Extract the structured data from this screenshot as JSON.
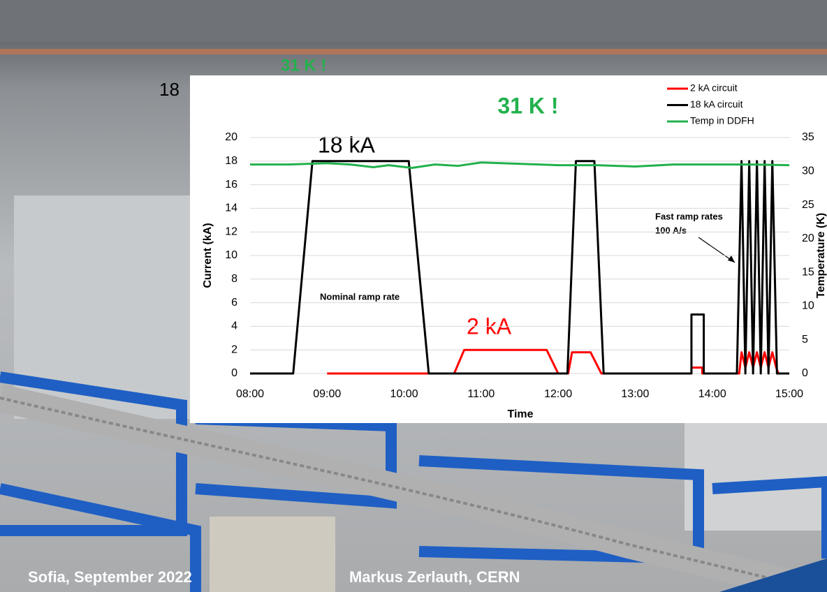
{
  "slide": {
    "footer_left": "Sofia, September 2022",
    "footer_right": "Markus Zerlauth, CERN",
    "background_label": "31 K !",
    "background_fragment": "18"
  },
  "chart_data": {
    "type": "line",
    "title": "31 K !",
    "x_label": "Time",
    "y_label": "Current (kA)",
    "y2_label": "Temperature (K)",
    "annotations": [
      "18 kA",
      "2 kA",
      "Nominal ramp rate",
      "Fast ramp rates",
      "100 A/s"
    ],
    "xlim": [
      8,
      15
    ],
    "xticks": [
      {
        "value": 8,
        "label": "08:00"
      },
      {
        "value": 9,
        "label": "09:00"
      },
      {
        "value": 10,
        "label": "10:00"
      },
      {
        "value": 11,
        "label": "11:00"
      },
      {
        "value": 12,
        "label": "12:00"
      },
      {
        "value": 13,
        "label": "13:00"
      },
      {
        "value": 14,
        "label": "14:00"
      },
      {
        "value": 15,
        "label": "15:00"
      }
    ],
    "ylim": [
      0,
      20
    ],
    "yticks": [
      0,
      2,
      4,
      6,
      8,
      10,
      12,
      14,
      16,
      18,
      20
    ],
    "y2lim": [
      0,
      35
    ],
    "y2ticks": [
      0,
      5,
      10,
      15,
      20,
      25,
      30,
      35
    ],
    "grid": true,
    "legend": "top-right",
    "series": [
      {
        "name": "2 kA circuit",
        "color": "#ff0000",
        "x": [
          9.0,
          10.65,
          10.78,
          11.85,
          12.0,
          12.13,
          12.18,
          12.42,
          12.56,
          13.73,
          13.73,
          13.87,
          13.87,
          14.35,
          14.38,
          14.43,
          14.48,
          14.53,
          14.58,
          14.63,
          14.68,
          14.73,
          14.78,
          14.83,
          14.86,
          15.0
        ],
        "values": [
          0,
          0,
          2,
          2,
          0,
          0,
          1.8,
          1.8,
          0,
          0,
          0.5,
          0.5,
          0,
          0,
          1.8,
          0.5,
          1.8,
          0.5,
          1.8,
          0.5,
          1.8,
          0.5,
          1.8,
          0.5,
          0,
          0
        ]
      },
      {
        "name": "18 kA circuit",
        "color": "#000000",
        "x": [
          8.0,
          8.56,
          8.81,
          10.06,
          10.32,
          12.12,
          12.23,
          12.47,
          12.59,
          13.73,
          13.73,
          13.89,
          13.89,
          14.32,
          14.38,
          14.43,
          14.48,
          14.53,
          14.58,
          14.63,
          14.68,
          14.73,
          14.78,
          14.84,
          15.0
        ],
        "values": [
          0,
          0,
          18,
          18,
          0,
          0,
          18,
          18,
          0,
          0,
          5,
          5,
          0,
          0,
          18,
          0,
          18,
          0,
          18,
          0,
          18,
          0,
          18,
          0,
          0
        ]
      },
      {
        "name": "Temp in DDFH",
        "color": "#22b14c",
        "axis": "y2",
        "x": [
          8.0,
          8.5,
          9.0,
          9.3,
          9.6,
          9.8,
          10.1,
          10.4,
          10.7,
          11.0,
          11.5,
          12.0,
          12.5,
          13.0,
          13.5,
          14.0,
          14.5,
          15.0
        ],
        "values": [
          31.0,
          31.0,
          31.2,
          31.0,
          30.6,
          30.9,
          30.5,
          31.0,
          30.8,
          31.3,
          31.1,
          30.9,
          30.9,
          30.7,
          31.0,
          31.0,
          31.0,
          30.9
        ]
      }
    ]
  }
}
